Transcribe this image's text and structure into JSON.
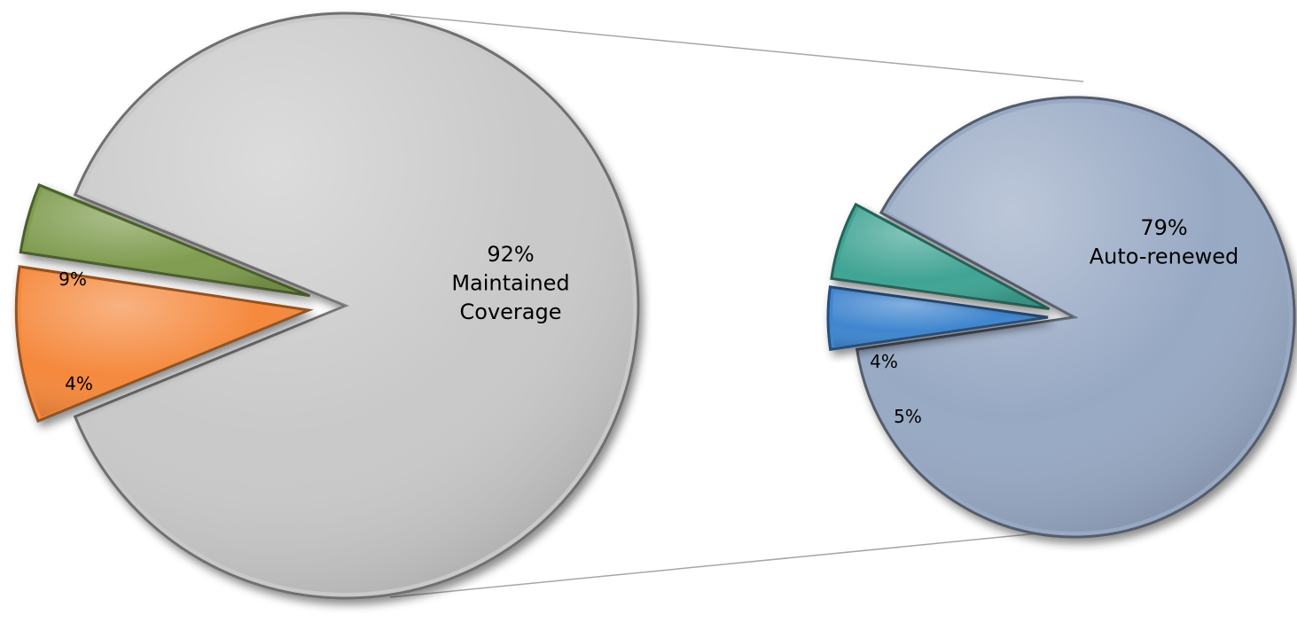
{
  "chart_data": {
    "type": "pie",
    "charts": [
      {
        "slices": [
          {
            "value": 92,
            "label": "92%",
            "name": "Maintained Coverage",
            "color": "#c9c9c9",
            "exploded": false
          },
          {
            "value": 9,
            "label": "9%",
            "name": "",
            "color": "#f5893c",
            "exploded": true
          },
          {
            "value": 4,
            "label": "4%",
            "name": "",
            "color": "#7f9c4f",
            "exploded": true
          }
        ]
      },
      {
        "slices": [
          {
            "value": 79,
            "label": "79%",
            "name": "Auto-renewed",
            "color": "#98a9c4",
            "exploded": false
          },
          {
            "value": 4,
            "label": "4%",
            "name": "",
            "color": "#3f86cf",
            "exploded": true
          },
          {
            "value": 5,
            "label": "5%",
            "name": "",
            "color": "#40a494",
            "exploded": true
          }
        ]
      }
    ],
    "connector_lines": true
  }
}
